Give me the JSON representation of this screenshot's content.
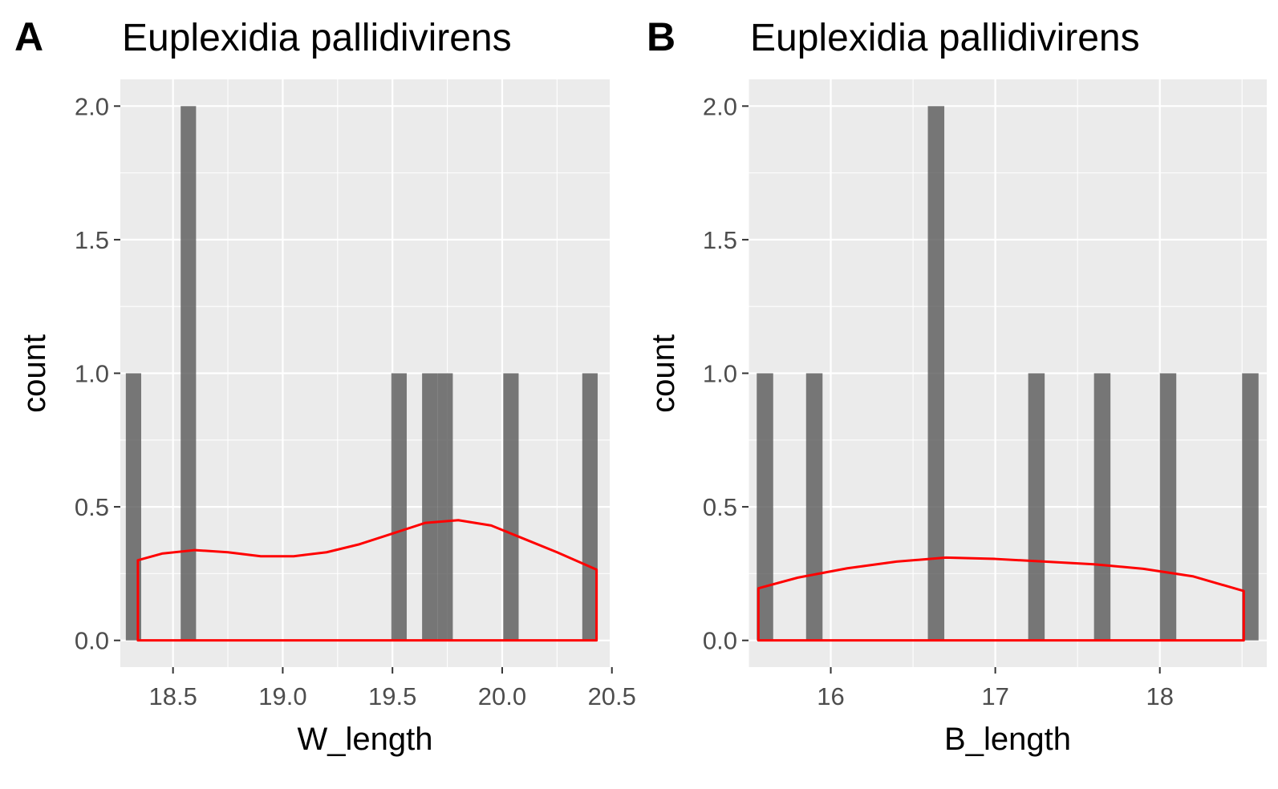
{
  "chart_data": [
    {
      "type": "bar",
      "tag": "A",
      "title": "Euplexidia pallidivirens",
      "xlabel": "W_length",
      "ylabel": "count",
      "xlim": [
        18.26,
        20.49
      ],
      "ylim": [
        -0.1,
        2.1
      ],
      "x_ticks": [
        "18.5",
        "19.0",
        "19.5",
        "20.0",
        "20.5"
      ],
      "x_tick_values": [
        18.5,
        19.0,
        19.5,
        20.0,
        20.5
      ],
      "y_ticks": [
        "0.0",
        "0.5",
        "1.0",
        "1.5",
        "2.0"
      ],
      "y_tick_values": [
        0.0,
        0.5,
        1.0,
        1.5,
        2.0
      ],
      "bin_width": 0.07,
      "bars": [
        {
          "x": 18.32,
          "count": 1
        },
        {
          "x": 18.57,
          "count": 2
        },
        {
          "x": 19.53,
          "count": 1
        },
        {
          "x": 19.67,
          "count": 1
        },
        {
          "x": 19.74,
          "count": 1
        },
        {
          "x": 20.04,
          "count": 1
        },
        {
          "x": 20.4,
          "count": 1
        }
      ],
      "density": {
        "x": [
          18.34,
          18.45,
          18.6,
          18.75,
          18.9,
          19.05,
          19.2,
          19.35,
          19.5,
          19.65,
          19.8,
          19.95,
          20.1,
          20.25,
          20.43
        ],
        "y": [
          0.3,
          0.325,
          0.338,
          0.33,
          0.315,
          0.315,
          0.33,
          0.36,
          0.4,
          0.44,
          0.45,
          0.43,
          0.38,
          0.33,
          0.265
        ]
      },
      "grid": true
    },
    {
      "type": "bar",
      "tag": "B",
      "title": "Euplexidia pallidivirens",
      "xlabel": "B_length",
      "ylabel": "count",
      "xlim": [
        15.5,
        18.65
      ],
      "ylim": [
        -0.1,
        2.1
      ],
      "x_ticks": [
        "16",
        "17",
        "18"
      ],
      "x_tick_values": [
        16,
        17,
        18
      ],
      "y_ticks": [
        "0.0",
        "0.5",
        "1.0",
        "1.5",
        "2.0"
      ],
      "y_tick_values": [
        0.0,
        0.5,
        1.0,
        1.5,
        2.0
      ],
      "bin_width": 0.1,
      "bars": [
        {
          "x": 15.6,
          "count": 1
        },
        {
          "x": 15.9,
          "count": 1
        },
        {
          "x": 16.64,
          "count": 2
        },
        {
          "x": 17.25,
          "count": 1
        },
        {
          "x": 17.65,
          "count": 1
        },
        {
          "x": 18.05,
          "count": 1
        },
        {
          "x": 18.55,
          "count": 1
        }
      ],
      "density": {
        "x": [
          15.56,
          15.8,
          16.1,
          16.4,
          16.7,
          17.0,
          17.3,
          17.6,
          17.9,
          18.2,
          18.51
        ],
        "y": [
          0.195,
          0.235,
          0.27,
          0.295,
          0.31,
          0.305,
          0.295,
          0.285,
          0.268,
          0.24,
          0.185
        ]
      },
      "grid": true
    }
  ]
}
